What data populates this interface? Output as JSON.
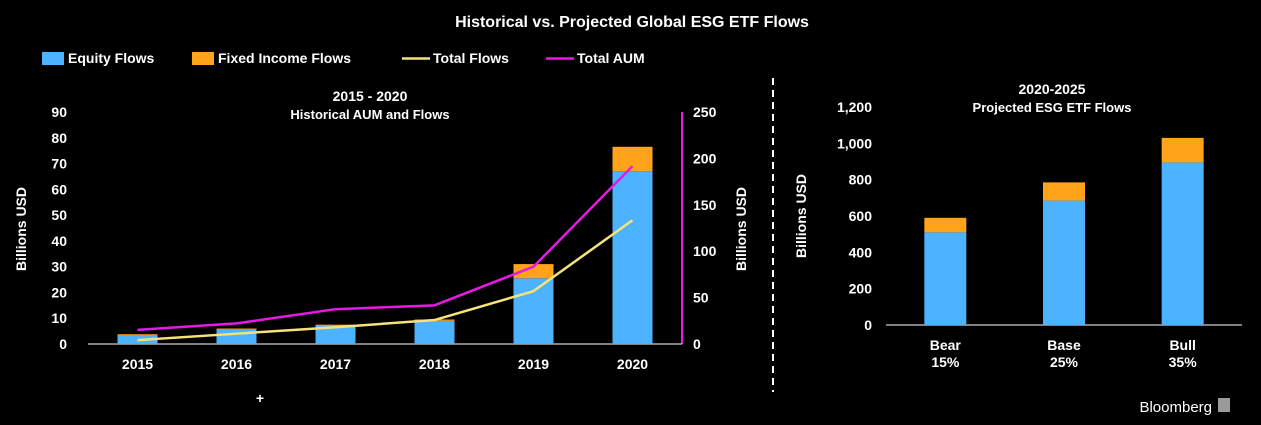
{
  "title": "Historical vs. Projected Global ESG ETF Flows",
  "brand": "Bloomberg",
  "cursor_mark": "+",
  "colors": {
    "equity": "#4db3ff",
    "fixed_income": "#ffa31a",
    "total_flows": "#f5e37a",
    "total_aum": "#e619e6",
    "divider": "#ffffff",
    "brand_text": "#9a9a9a"
  },
  "legend": [
    {
      "label": "Equity Flows",
      "kind": "swatch",
      "color_key": "equity"
    },
    {
      "label": "Fixed Income Flows",
      "kind": "swatch",
      "color_key": "fixed_income"
    },
    {
      "label": "Total Flows",
      "kind": "line",
      "color_key": "total_flows"
    },
    {
      "label": "Total AUM",
      "kind": "line",
      "color_key": "total_aum"
    }
  ],
  "chart_data": [
    {
      "type": "bar",
      "title": "2015 - 2020",
      "subtitle": "Historical AUM and Flows",
      "categories": [
        "2015",
        "2016",
        "2017",
        "2018",
        "2019",
        "2020"
      ],
      "ylabel": "Billions USD",
      "ylim": [
        0,
        90
      ],
      "yticks": [
        "0",
        "10",
        "20",
        "30",
        "40",
        "50",
        "60",
        "70",
        "80",
        "90"
      ],
      "y2label": "Billions USD",
      "y2lim": [
        0,
        250
      ],
      "y2ticks": [
        "0",
        "50",
        "100",
        "150",
        "200",
        "250"
      ],
      "stacked": true,
      "series": [
        {
          "name": "Equity Flows",
          "type": "bar",
          "axis": "left",
          "values": [
            3.5,
            5.5,
            7,
            9,
            25.5,
            67
          ]
        },
        {
          "name": "Fixed Income Flows",
          "type": "bar",
          "axis": "left",
          "values": [
            0.3,
            0.5,
            0.5,
            0.5,
            5.5,
            9.5
          ]
        },
        {
          "name": "Total Flows",
          "type": "line",
          "axis": "left",
          "values": [
            1.5,
            4,
            6.5,
            9.3,
            20.5,
            48
          ]
        },
        {
          "name": "Total AUM",
          "type": "line",
          "axis": "left",
          "values": [
            5.5,
            8,
            13.5,
            15,
            30,
            69
          ]
        }
      ]
    },
    {
      "type": "bar",
      "title": "2020-2025",
      "subtitle": "Projected ESG ETF Flows",
      "categories": [
        "Bear",
        "Base",
        "Bull"
      ],
      "category_sublabels": [
        "15%",
        "25%",
        "35%"
      ],
      "ylabel": "Billions USD",
      "ylim": [
        0,
        1200
      ],
      "yticks": [
        "0",
        "200",
        "400",
        "600",
        "800",
        "1,000",
        "1,200"
      ],
      "stacked": true,
      "series": [
        {
          "name": "Equity Flows",
          "values": [
            510,
            685,
            895
          ]
        },
        {
          "name": "Fixed Income Flows",
          "values": [
            80,
            100,
            135
          ]
        }
      ]
    }
  ]
}
